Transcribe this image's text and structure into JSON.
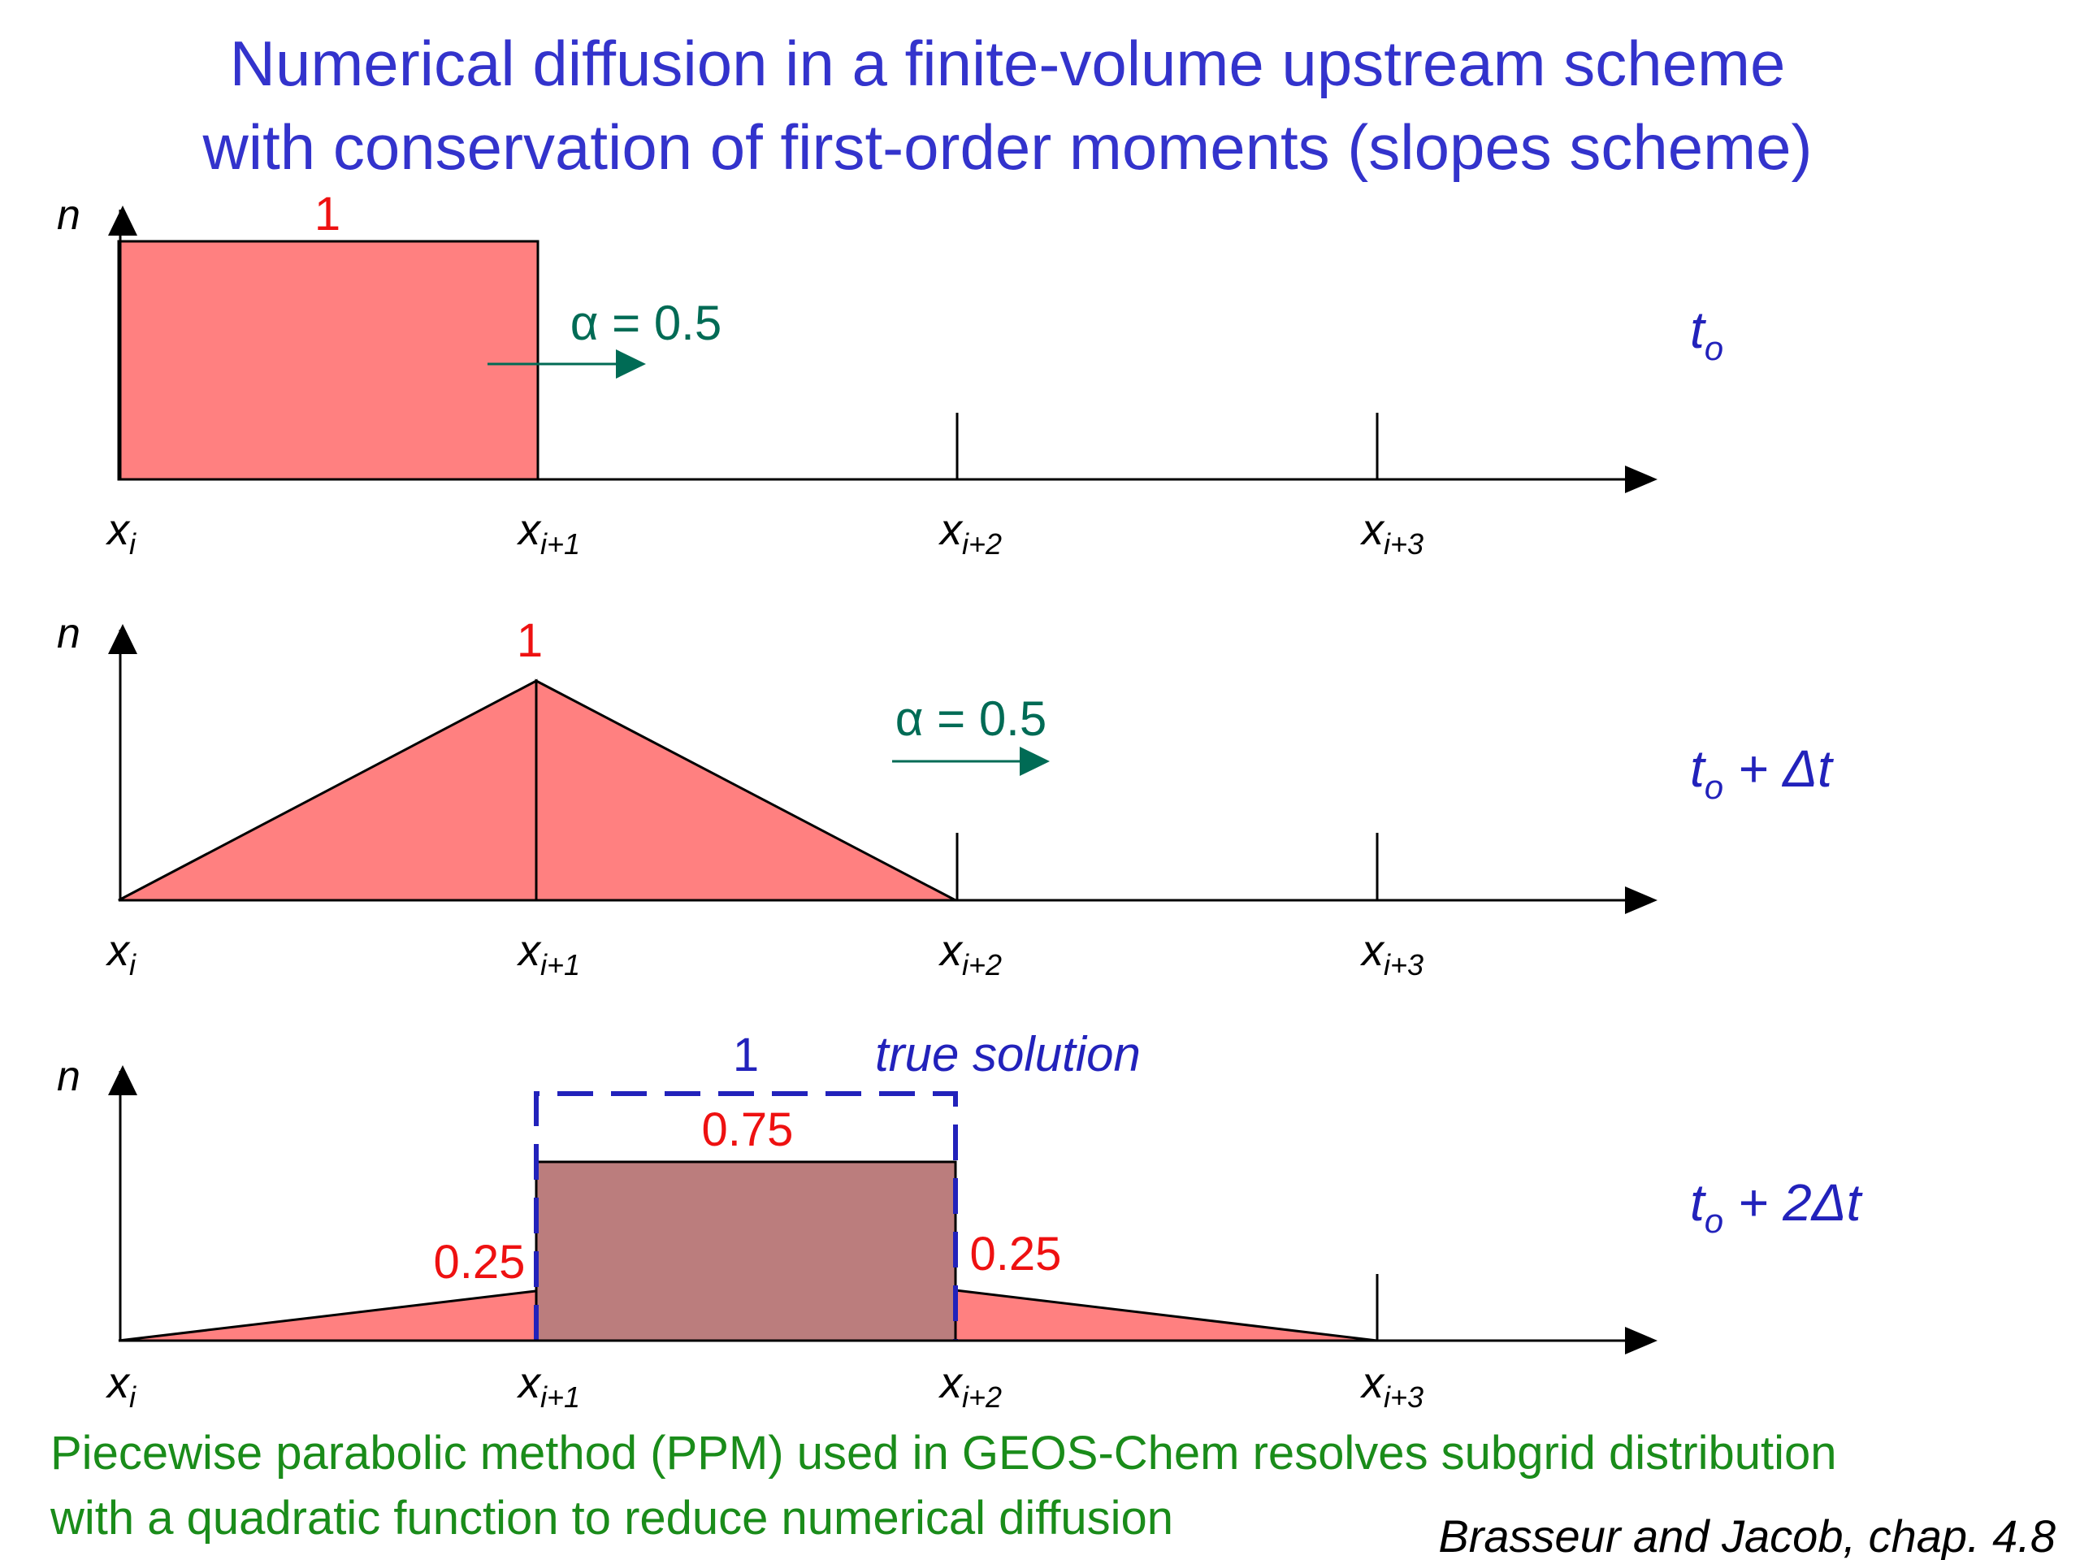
{
  "title": {
    "line1": "Numerical diffusion in a finite-volume upstream scheme",
    "line2": "with conservation of first-order moments (slopes scheme)"
  },
  "axes": {
    "y_label": "n",
    "x_labels": [
      {
        "base": "x",
        "sub": "i"
      },
      {
        "base": "x",
        "sub": "i+1"
      },
      {
        "base": "x",
        "sub": "i+2"
      },
      {
        "base": "x",
        "sub": "i+3"
      }
    ]
  },
  "panels": [
    {
      "time": {
        "base": "t",
        "sub": "o",
        "suffix": ""
      },
      "alpha_label": "α = 0.5",
      "peak_label": "1"
    },
    {
      "time": {
        "base": "t",
        "sub": "o",
        "suffix": " + Δt"
      },
      "alpha_label": "α = 0.5",
      "peak_label": "1"
    },
    {
      "time": {
        "base": "t",
        "sub": "o",
        "suffix": " + 2Δt"
      },
      "true_solution_label": "true solution",
      "true_solution_value": "1",
      "center_label": "0.75",
      "left_label": "0.25",
      "right_label": "0.25"
    }
  ],
  "footer": {
    "line1": "Piecewise parabolic method (PPM) used in GEOS-Chem resolves subgrid distribution",
    "line2": "with a quadratic function to reduce numerical diffusion"
  },
  "citation": "Brasseur and Jacob, chap. 4.8",
  "colors": {
    "title": "#3333cc",
    "fill_red": "#ff8080",
    "fill_dark": "#bb7d7d",
    "value_red": "#ee1111",
    "arrow_green": "#006b55",
    "true_solution_blue": "#2222bb",
    "footer_green": "#1a8c1a"
  }
}
